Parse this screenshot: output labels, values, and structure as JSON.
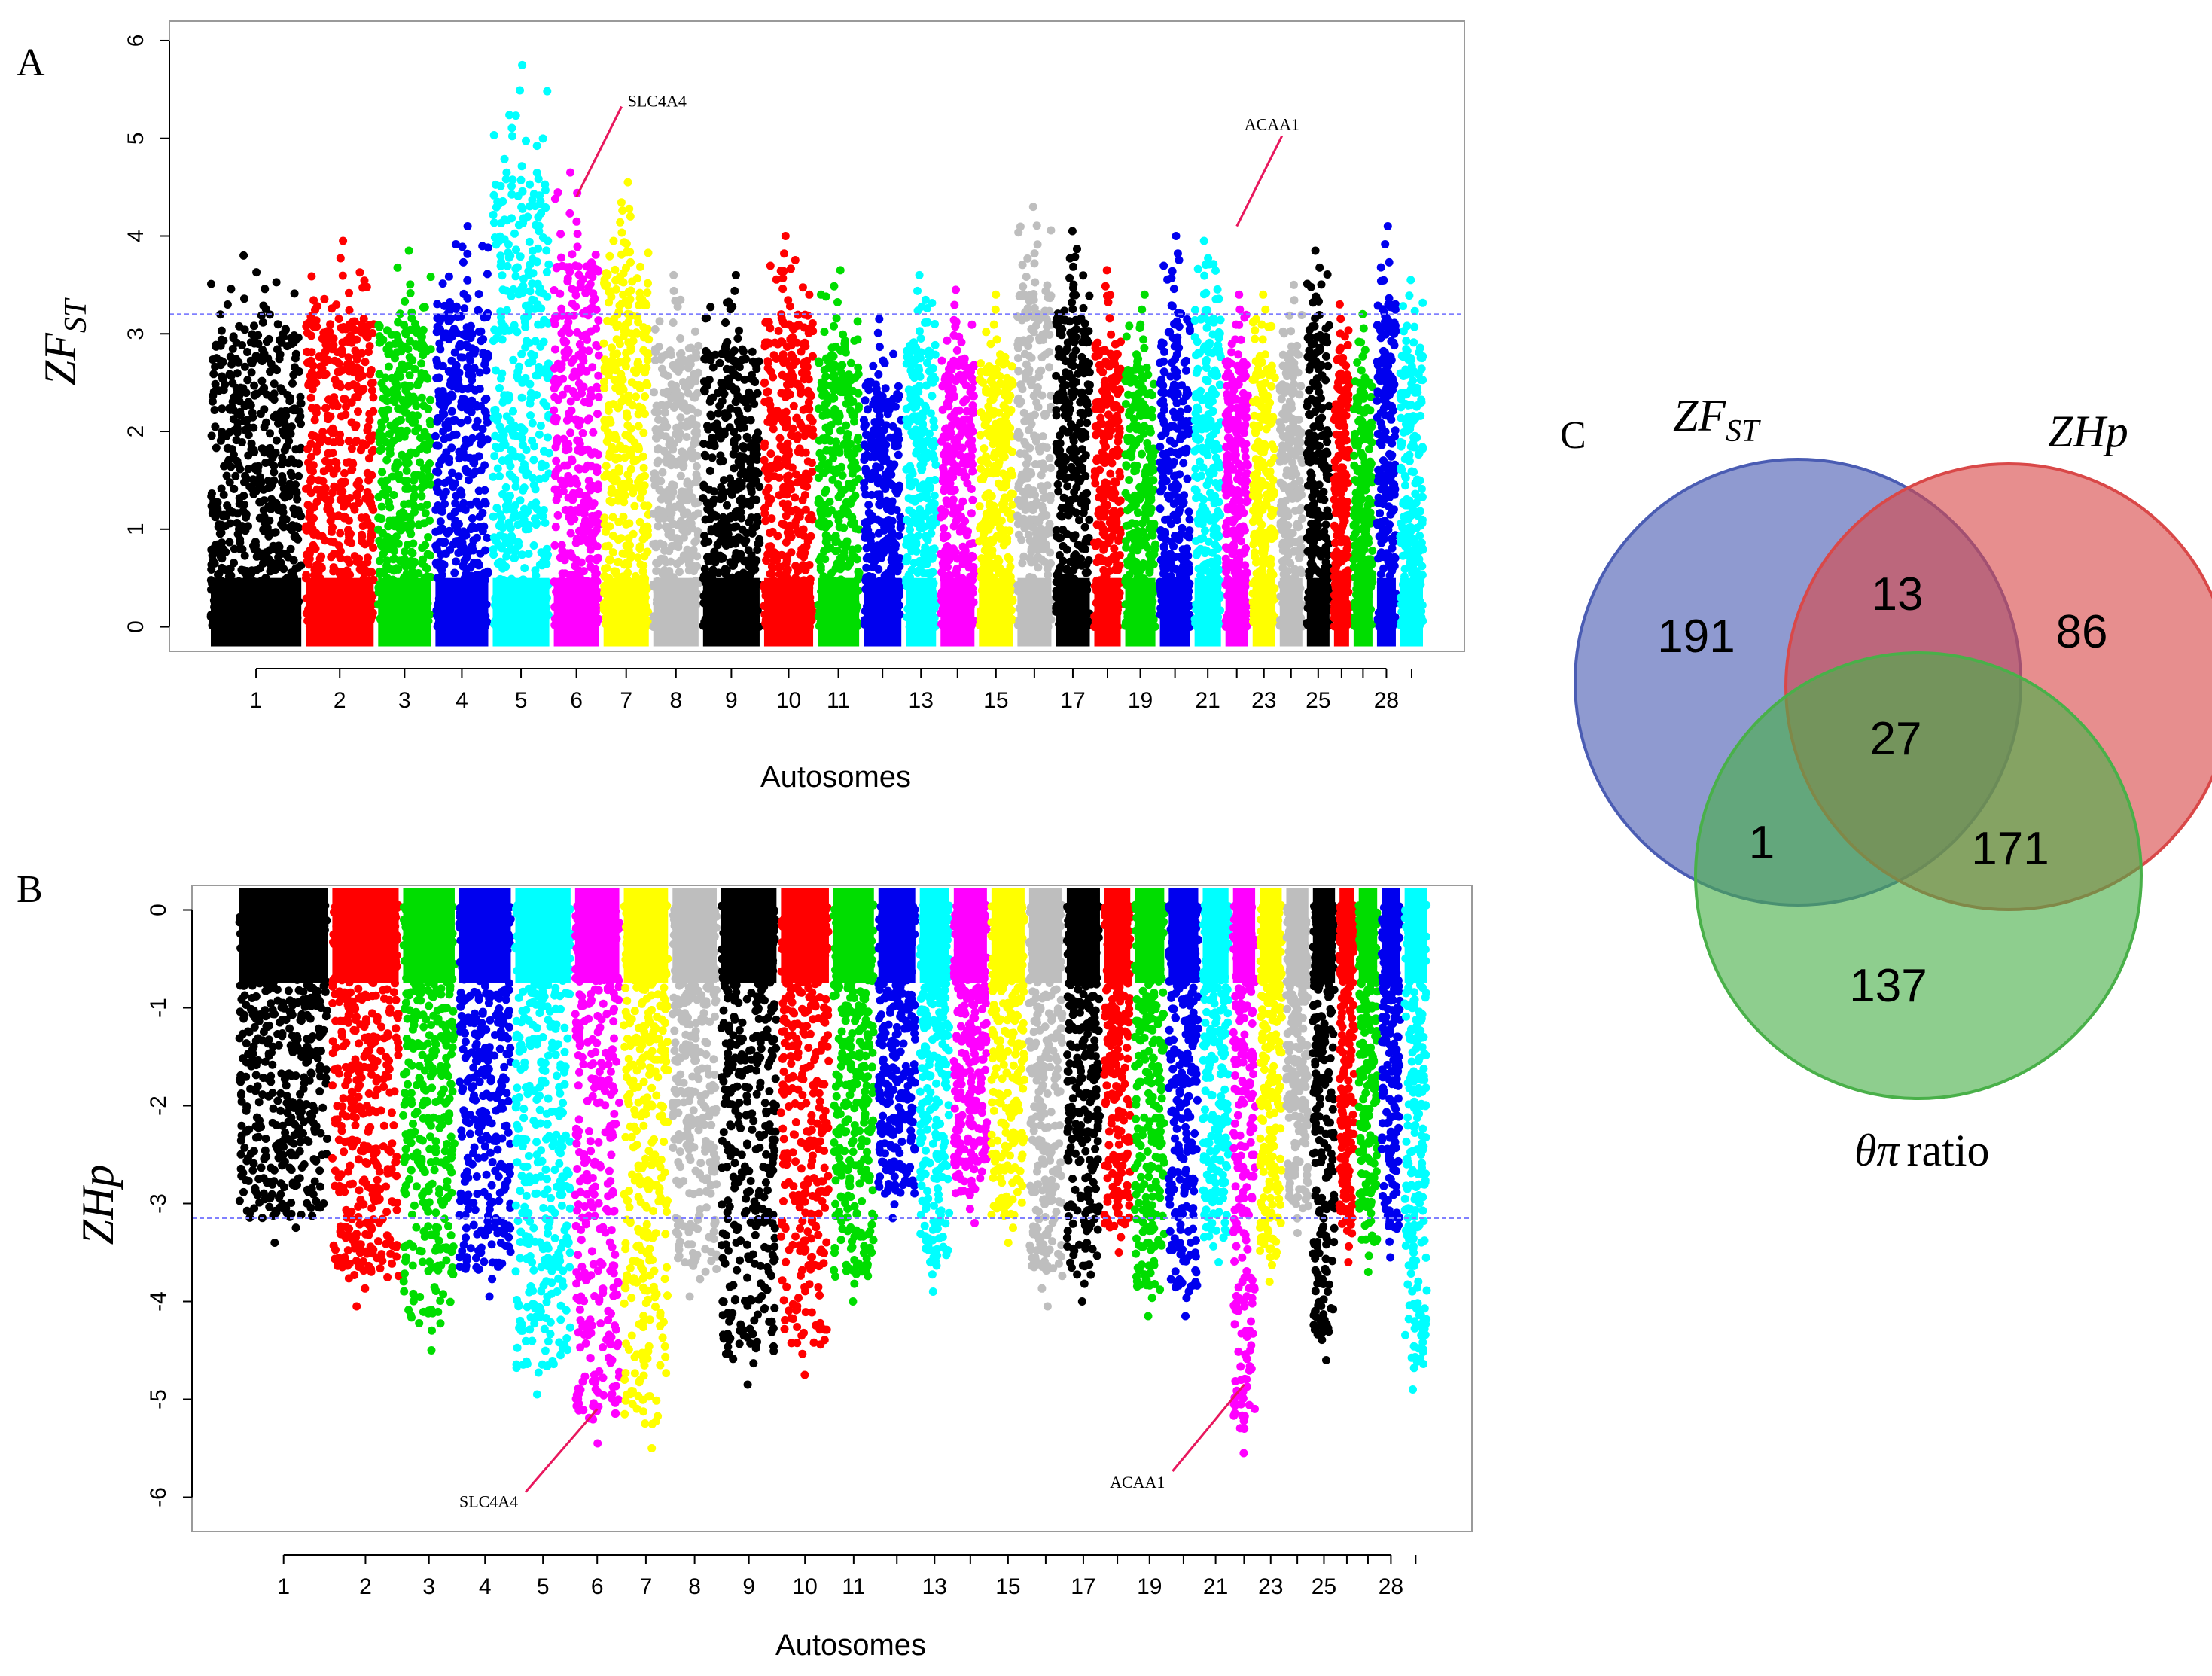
{
  "panels": {
    "a_letter": "A",
    "b_letter": "B",
    "c_letter": "C"
  },
  "colors": {
    "palette": [
      "#000000",
      "#ff0000",
      "#00dd00",
      "#0000ee",
      "#00ffff",
      "#ff00ff",
      "#ffff00",
      "#bebebe"
    ],
    "threshold": "#8080ff",
    "arrow": "#e8175d",
    "frame": "#9a9a9a",
    "venn_zfst": "#4a5cb3",
    "venn_zhp": "#d94848",
    "venn_theta": "#49b049"
  },
  "chart_data": [
    {
      "type": "scatter",
      "subtype": "manhattan",
      "panel": "A",
      "ylabel": "ZF",
      "ylabel_sub": "ST",
      "xlabel": "Autosomes",
      "ylim": [
        -0.25,
        6.2
      ],
      "yticks": [
        0,
        1,
        2,
        3,
        4,
        5,
        6
      ],
      "ytick_labels": [
        "0",
        "1",
        "2",
        "3",
        "4",
        "5",
        "6"
      ],
      "threshold": 3.2,
      "x_tick_labels": [
        "1",
        "2",
        "3",
        "4",
        "5",
        "6",
        "7",
        "8",
        "9",
        "10",
        "11",
        "13",
        "15",
        "17",
        "19",
        "21",
        "23",
        "25",
        "28"
      ],
      "chromosomes": [
        "1",
        "2",
        "3",
        "4",
        "5",
        "6",
        "7",
        "8",
        "9",
        "10",
        "11",
        "12",
        "13",
        "14",
        "15",
        "16",
        "17",
        "18",
        "19",
        "20",
        "21",
        "22",
        "23",
        "24",
        "25",
        "26",
        "27",
        "28",
        "29"
      ],
      "chromosome_peaks": [
        3.8,
        3.95,
        3.85,
        4.1,
        5.75,
        4.65,
        4.55,
        3.6,
        3.6,
        4.0,
        3.65,
        3.15,
        3.6,
        3.45,
        3.4,
        4.3,
        4.05,
        3.65,
        3.4,
        4.0,
        3.95,
        3.4,
        3.4,
        3.5,
        3.85,
        3.3,
        3.2,
        4.1,
        3.55
      ],
      "annotations": [
        {
          "label": "SLC4A4",
          "chromosome": "6",
          "value": 4.4
        },
        {
          "label": "ACAA1",
          "chromosome": "22",
          "value": 4.1
        }
      ]
    },
    {
      "type": "scatter",
      "subtype": "manhattan",
      "panel": "B",
      "ylabel": "ZHp",
      "xlabel": "Autosomes",
      "ylim": [
        -6.35,
        0.25
      ],
      "yticks": [
        0,
        -1,
        -2,
        -3,
        -4,
        -5,
        -6
      ],
      "ytick_labels": [
        "0",
        "-1",
        "-2",
        "-3",
        "-4",
        "-5",
        "-6"
      ],
      "threshold": -3.15,
      "x_tick_labels": [
        "1",
        "2",
        "3",
        "4",
        "5",
        "6",
        "7",
        "8",
        "9",
        "10",
        "11",
        "13",
        "15",
        "17",
        "19",
        "21",
        "23",
        "25",
        "28"
      ],
      "chromosomes": [
        "1",
        "2",
        "3",
        "4",
        "5",
        "6",
        "7",
        "8",
        "9",
        "10",
        "11",
        "12",
        "13",
        "14",
        "15",
        "16",
        "17",
        "18",
        "19",
        "20",
        "21",
        "22",
        "23",
        "24",
        "25",
        "26",
        "27",
        "28",
        "29"
      ],
      "chromosome_minima": [
        -3.4,
        -4.05,
        -4.5,
        -3.95,
        -4.95,
        -5.45,
        -5.5,
        -3.95,
        -4.85,
        -4.75,
        -4.0,
        -3.15,
        -3.9,
        -3.2,
        -3.4,
        -4.05,
        -4.0,
        -3.5,
        -4.15,
        -4.15,
        -3.6,
        -5.55,
        -3.8,
        -3.3,
        -4.6,
        -3.6,
        -3.7,
        -3.55,
        -4.9
      ],
      "annotations": [
        {
          "label": "SLC4A4",
          "chromosome": "6",
          "value": -5.1
        },
        {
          "label": "ACAA1",
          "chromosome": "22",
          "value": -4.85
        }
      ]
    },
    {
      "type": "venn",
      "panel": "C",
      "sets": [
        "ZFST",
        "ZHp",
        "θπ ratio"
      ],
      "regions": {
        "zfst_only": 191,
        "zhp_only": 86,
        "theta_only": 137,
        "zfst_zhp": 13,
        "zfst_theta": 1,
        "zhp_theta": 171,
        "all_three": 27
      }
    }
  ],
  "venn_labels": {
    "zfst_main": "ZF",
    "zfst_sub": "ST",
    "zhp": "ZHp",
    "theta_symbol": "θπ",
    "theta_word": "ratio"
  }
}
